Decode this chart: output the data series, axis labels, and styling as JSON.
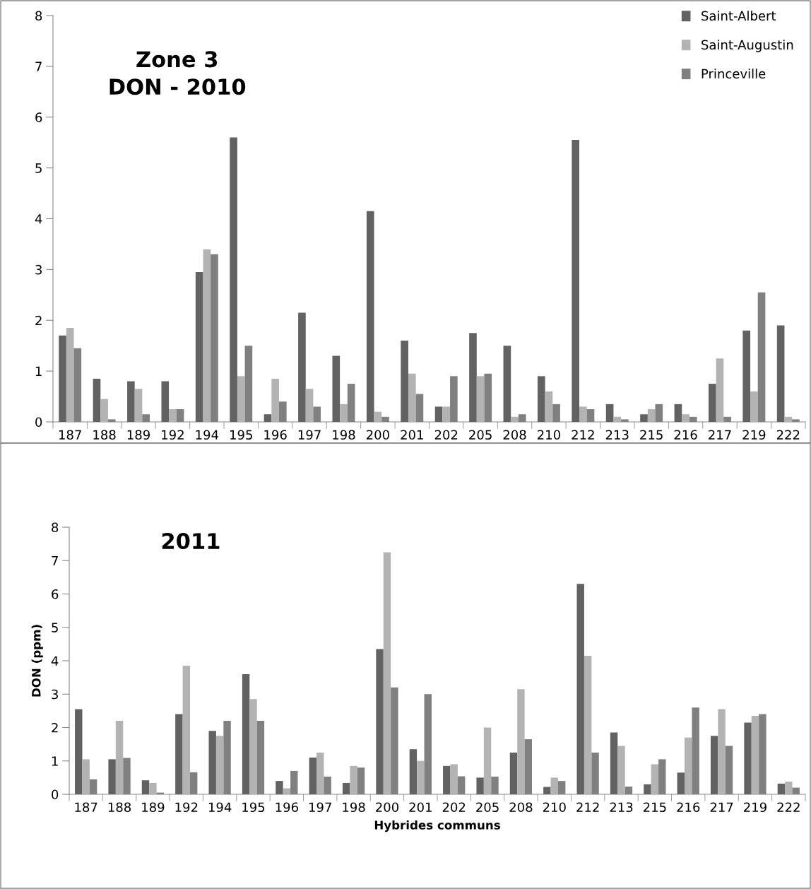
{
  "chart_data": [
    {
      "type": "bar",
      "title": "Zone 3\nDON - 2010",
      "categories": [
        "187",
        "188",
        "189",
        "192",
        "194",
        "195",
        "196",
        "197",
        "198",
        "200",
        "201",
        "202",
        "205",
        "208",
        "210",
        "212",
        "213",
        "215",
        "216",
        "217",
        "219",
        "222"
      ],
      "series": [
        {
          "name": "Saint-Albert",
          "color": "#626262",
          "values": [
            1.7,
            0.85,
            0.8,
            0.8,
            2.95,
            5.6,
            0.15,
            2.15,
            1.3,
            4.15,
            1.6,
            0.3,
            1.75,
            1.5,
            0.9,
            5.55,
            0.35,
            0.15,
            0.35,
            0.75,
            1.8,
            1.9
          ]
        },
        {
          "name": "Saint-Augustin",
          "color": "#b3b3b3",
          "values": [
            1.85,
            0.45,
            0.65,
            0.25,
            3.4,
            0.9,
            0.85,
            0.65,
            0.35,
            0.2,
            0.95,
            0.3,
            0.9,
            0.1,
            0.6,
            0.3,
            0.1,
            0.25,
            0.15,
            1.25,
            0.6,
            0.1
          ]
        },
        {
          "name": "Princeville",
          "color": "#808080",
          "values": [
            1.45,
            0.05,
            0.15,
            0.25,
            3.3,
            1.5,
            0.4,
            0.3,
            0.75,
            0.1,
            0.55,
            0.9,
            0.95,
            0.15,
            0.35,
            0.25,
            0.05,
            0.35,
            0.1,
            0.1,
            2.55,
            0.05
          ]
        }
      ],
      "ylim": [
        0,
        8
      ],
      "yticks": [
        0,
        1,
        2,
        3,
        4,
        5,
        6,
        7,
        8
      ],
      "grid": false,
      "legend": "top right"
    },
    {
      "type": "bar",
      "title": "2011",
      "xlabel": "Hybrides communs",
      "ylabel": "DON (ppm)",
      "categories": [
        "187",
        "188",
        "189",
        "192",
        "194",
        "195",
        "196",
        "197",
        "198",
        "200",
        "201",
        "202",
        "205",
        "208",
        "210",
        "212",
        "213",
        "215",
        "216",
        "217",
        "219",
        "222"
      ],
      "series": [
        {
          "color": "#626262",
          "values": [
            2.55,
            1.05,
            0.42,
            2.4,
            1.9,
            3.6,
            0.4,
            1.1,
            0.34,
            4.35,
            1.35,
            0.85,
            0.5,
            1.25,
            0.22,
            6.3,
            1.85,
            0.3,
            0.65,
            1.75,
            2.15,
            0.32
          ]
        },
        {
          "color": "#b3b3b3",
          "values": [
            1.05,
            2.2,
            0.34,
            3.85,
            1.75,
            2.85,
            0.18,
            1.25,
            0.85,
            7.25,
            1.0,
            0.9,
            2.0,
            3.15,
            0.5,
            4.15,
            1.45,
            0.9,
            1.7,
            2.55,
            2.35,
            0.38
          ]
        },
        {
          "color": "#808080",
          "values": [
            0.45,
            1.09,
            0.05,
            0.66,
            2.2,
            2.2,
            0.7,
            0.53,
            0.8,
            3.2,
            3.0,
            0.54,
            0.53,
            1.65,
            0.4,
            1.25,
            0.23,
            1.05,
            2.6,
            1.45,
            2.4,
            0.2
          ]
        }
      ],
      "ylim": [
        0,
        8
      ],
      "yticks": [
        0,
        1,
        2,
        3,
        4,
        5,
        6,
        7,
        8
      ],
      "grid": false,
      "legend": false
    }
  ]
}
